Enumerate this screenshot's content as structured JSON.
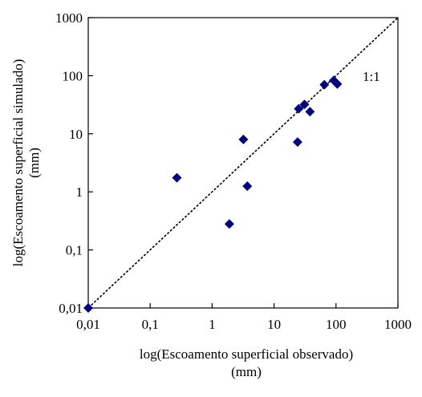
{
  "chart_data": {
    "type": "scatter",
    "title": "",
    "xlabel": [
      "log(Escoamento superficial observado)",
      "(mm)"
    ],
    "ylabel": [
      "log(Escoamento superficial simulado)",
      "(mm)"
    ],
    "x_scale": "log",
    "y_scale": "log",
    "xlim": [
      0.01,
      1000
    ],
    "ylim": [
      0.01,
      1000
    ],
    "x_tick_values": [
      0.01,
      0.1,
      1,
      10,
      100,
      1000
    ],
    "x_tick_labels": [
      "0,01",
      "0,1",
      "1",
      "10",
      "100",
      "1000"
    ],
    "y_tick_values": [
      0.01,
      0.1,
      1,
      10,
      100,
      1000
    ],
    "y_tick_labels": [
      "0,01",
      "0,1",
      "1",
      "10",
      "100",
      "1000"
    ],
    "grid": false,
    "legend": "none",
    "reference_line": {
      "label": "1:1",
      "style": "dashed",
      "color": "#000000"
    },
    "marker": {
      "shape": "diamond",
      "color": "#000080"
    },
    "series": [
      {
        "points": [
          {
            "x": 0.01,
            "y": 0.01
          },
          {
            "x": 0.27,
            "y": 1.75
          },
          {
            "x": 1.9,
            "y": 0.28
          },
          {
            "x": 3.2,
            "y": 8.0
          },
          {
            "x": 3.7,
            "y": 1.25
          },
          {
            "x": 24,
            "y": 7.2
          },
          {
            "x": 25,
            "y": 27
          },
          {
            "x": 31,
            "y": 32
          },
          {
            "x": 38,
            "y": 24
          },
          {
            "x": 65,
            "y": 70
          },
          {
            "x": 92,
            "y": 83
          },
          {
            "x": 105,
            "y": 72
          }
        ]
      }
    ]
  }
}
